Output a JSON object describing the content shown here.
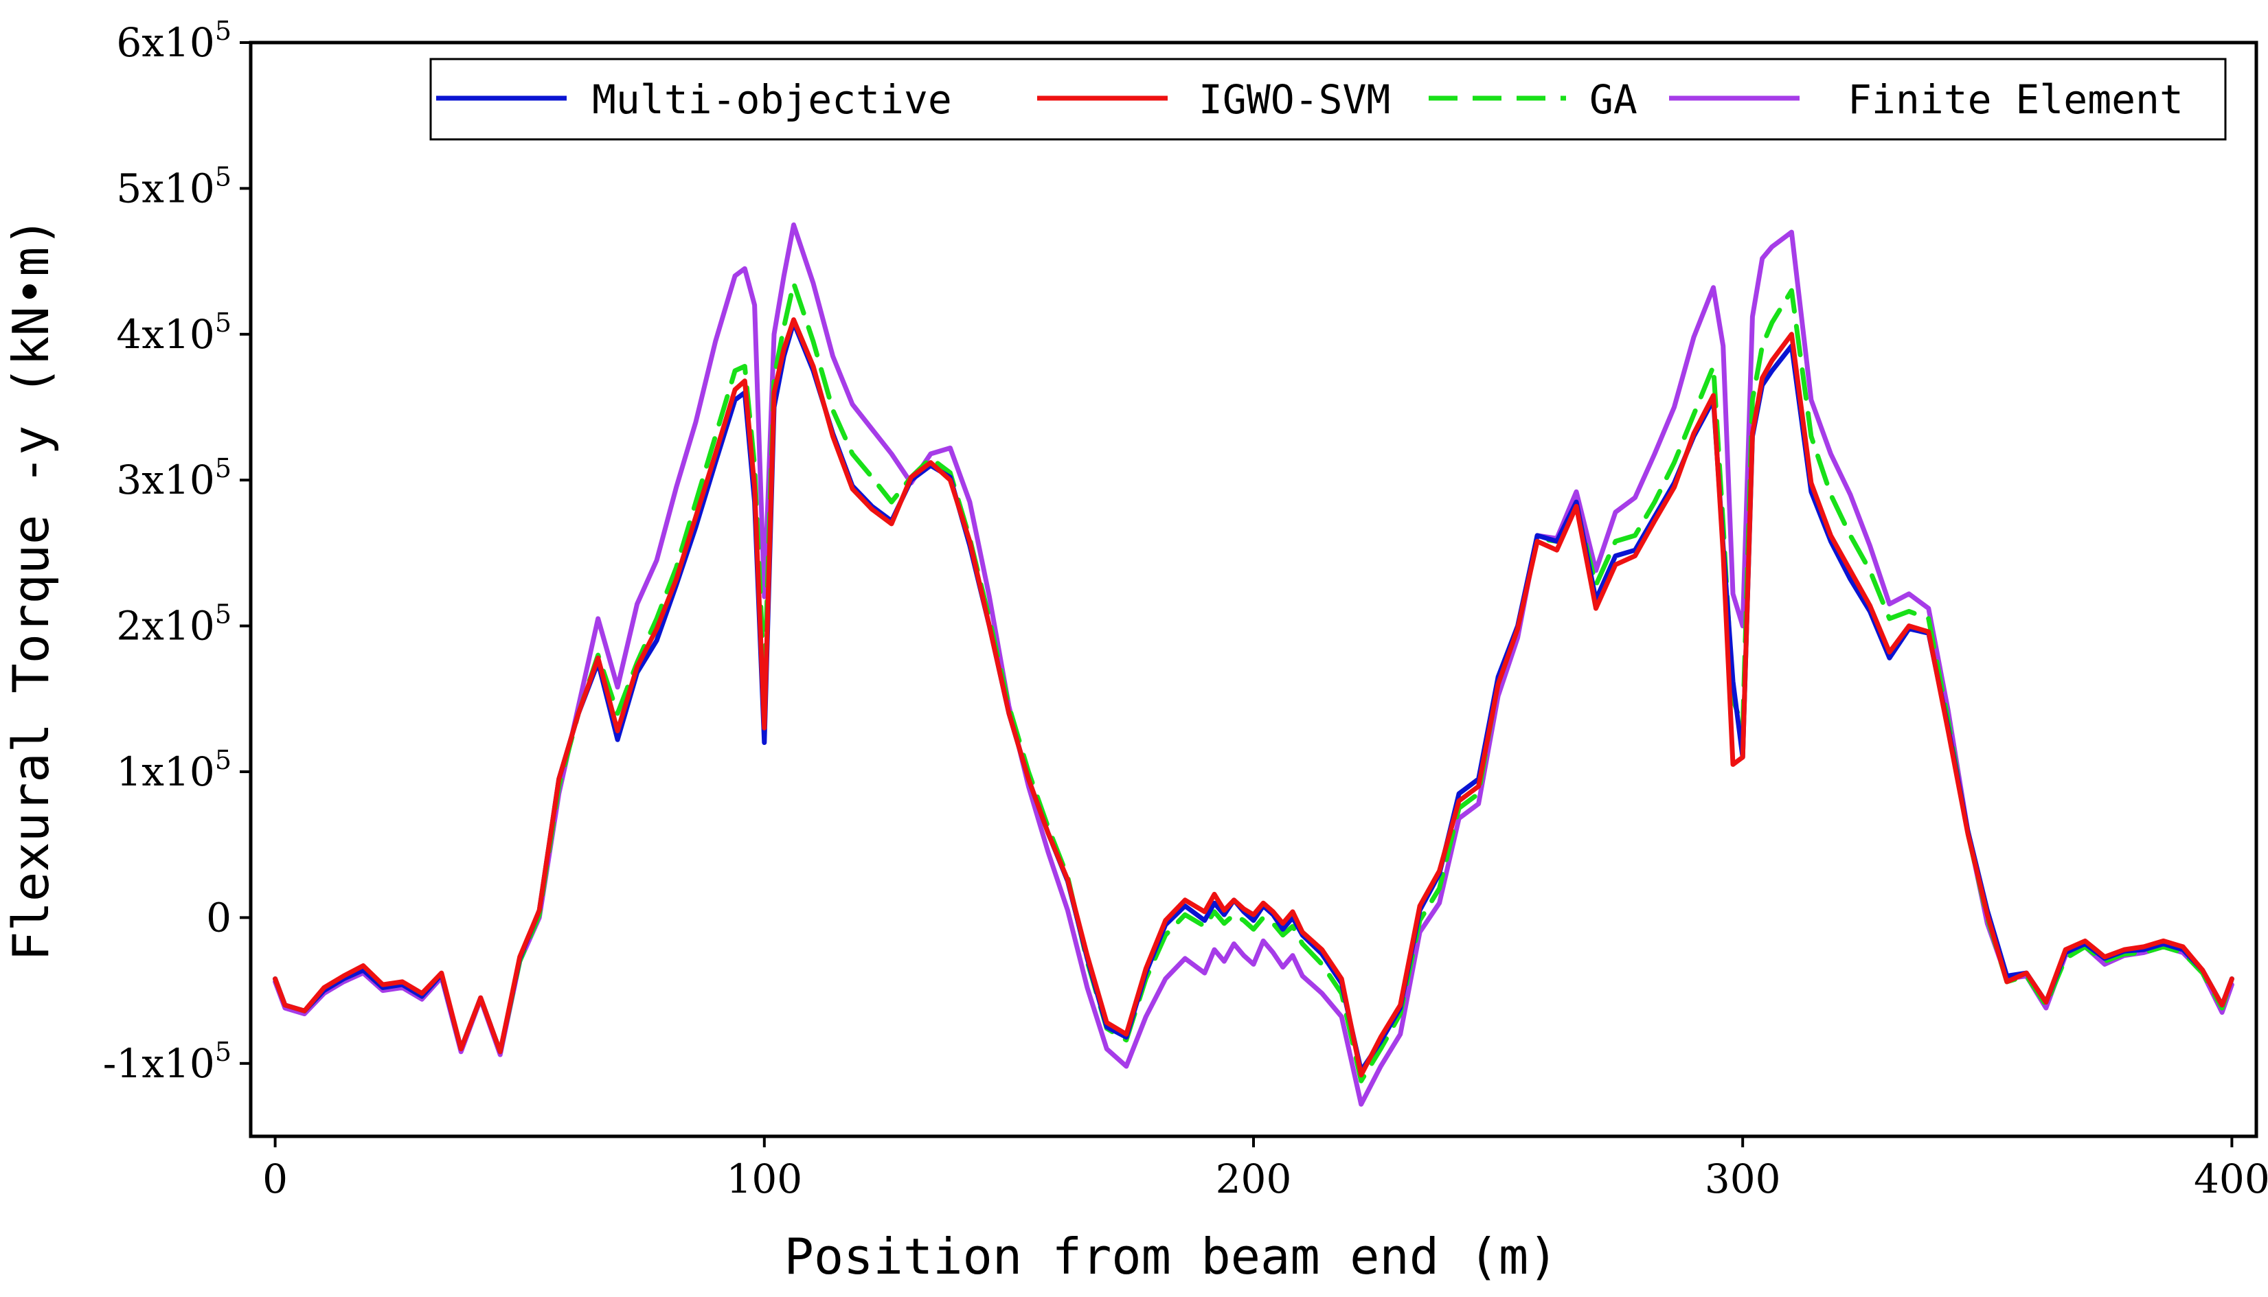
{
  "chart_data": {
    "type": "line",
    "xlabel": "Position from beam end (m)",
    "ylabel": "Flexural Torque -y (kN•m)",
    "xlim": [
      -5,
      405
    ],
    "ylim": [
      -150000,
      600000
    ],
    "x_ticks": [
      0,
      100,
      200,
      300,
      400
    ],
    "x_tick_labels": [
      "0",
      "100",
      "200",
      "300",
      "400"
    ],
    "y_ticks": [
      {
        "value": 600000,
        "base": "6x10",
        "exp": "5"
      },
      {
        "value": 500000,
        "base": "5x10",
        "exp": "5"
      },
      {
        "value": 400000,
        "base": "4x10",
        "exp": "5"
      },
      {
        "value": 300000,
        "base": "3x10",
        "exp": "5"
      },
      {
        "value": 200000,
        "base": "2x10",
        "exp": "5"
      },
      {
        "value": 100000,
        "base": "1x10",
        "exp": "5"
      },
      {
        "value": 0,
        "base": "0",
        "exp": ""
      },
      {
        "value": -100000,
        "base": "-1x10",
        "exp": "5"
      }
    ],
    "grid": false,
    "legend_position": "top-right",
    "x": [
      0,
      2,
      6,
      10,
      14,
      18,
      22,
      26,
      30,
      34,
      38,
      42,
      46,
      50,
      54,
      58,
      62,
      66,
      70,
      74,
      78,
      82,
      86,
      90,
      94,
      96,
      98,
      100,
      102,
      104,
      106,
      110,
      114,
      118,
      122,
      126,
      130,
      134,
      138,
      142,
      146,
      150,
      154,
      158,
      162,
      166,
      170,
      174,
      178,
      182,
      186,
      190,
      192,
      194,
      196,
      198,
      200,
      202,
      204,
      206,
      208,
      210,
      214,
      218,
      222,
      226,
      230,
      234,
      238,
      242,
      246,
      250,
      254,
      258,
      262,
      266,
      270,
      274,
      278,
      282,
      286,
      290,
      294,
      296,
      298,
      300,
      302,
      304,
      306,
      310,
      314,
      318,
      322,
      326,
      330,
      334,
      338,
      342,
      346,
      350,
      354,
      358,
      362,
      366,
      370,
      374,
      378,
      382,
      386,
      390,
      394,
      398,
      400
    ],
    "series": [
      {
        "name": "Multi-objective",
        "color": "#0a14d2",
        "dash": "solid",
        "values": [
          -42000,
          -60000,
          -64000,
          -50000,
          -42000,
          -36000,
          -48000,
          -46000,
          -54000,
          -39000,
          -90000,
          -55000,
          -92000,
          -28000,
          5000,
          95000,
          140000,
          175000,
          122000,
          168000,
          190000,
          228000,
          268000,
          312000,
          355000,
          360000,
          285000,
          120000,
          350000,
          385000,
          408000,
          375000,
          332000,
          296000,
          282000,
          272000,
          300000,
          310000,
          302000,
          255000,
          200000,
          140000,
          95000,
          58000,
          25000,
          -28000,
          -75000,
          -82000,
          -38000,
          -5000,
          8000,
          -2000,
          10000,
          2000,
          12000,
          4000,
          -2000,
          8000,
          2000,
          -8000,
          0,
          -12000,
          -25000,
          -45000,
          -105000,
          -85000,
          -62000,
          5000,
          30000,
          85000,
          95000,
          165000,
          200000,
          262000,
          258000,
          285000,
          218000,
          248000,
          252000,
          275000,
          298000,
          330000,
          355000,
          255000,
          162000,
          110000,
          330000,
          365000,
          375000,
          392000,
          292000,
          258000,
          232000,
          210000,
          178000,
          198000,
          195000,
          130000,
          60000,
          5000,
          -40000,
          -38000,
          -58000,
          -24000,
          -18000,
          -28000,
          -23000,
          -22000,
          -18000,
          -22000,
          -36000,
          -60000,
          -42000
        ]
      },
      {
        "name": "IGWO-SVM",
        "color": "#ee1111",
        "dash": "solid",
        "values": [
          -42000,
          -60000,
          -64000,
          -48000,
          -40000,
          -33000,
          -46000,
          -44000,
          -52000,
          -38000,
          -90000,
          -55000,
          -92000,
          -27000,
          5000,
          95000,
          140000,
          178000,
          128000,
          172000,
          198000,
          232000,
          275000,
          318000,
          362000,
          368000,
          295000,
          130000,
          360000,
          390000,
          410000,
          378000,
          330000,
          294000,
          280000,
          270000,
          302000,
          312000,
          300000,
          258000,
          200000,
          140000,
          95000,
          58000,
          26000,
          -26000,
          -72000,
          -80000,
          -35000,
          -2000,
          12000,
          4000,
          16000,
          5000,
          12000,
          6000,
          2000,
          10000,
          4000,
          -4000,
          4000,
          -10000,
          -22000,
          -42000,
          -108000,
          -82000,
          -60000,
          8000,
          32000,
          80000,
          90000,
          160000,
          198000,
          258000,
          252000,
          282000,
          212000,
          242000,
          248000,
          272000,
          295000,
          332000,
          358000,
          250000,
          105000,
          110000,
          332000,
          370000,
          382000,
          400000,
          298000,
          262000,
          238000,
          214000,
          182000,
          200000,
          196000,
          128000,
          58000,
          2000,
          -44000,
          -38000,
          -58000,
          -22000,
          -16000,
          -27000,
          -22000,
          -20000,
          -16000,
          -20000,
          -36000,
          -60000,
          -42000
        ]
      },
      {
        "name": "GA",
        "color": "#18e018",
        "dash": "dashed",
        "values": [
          -42000,
          -60000,
          -64000,
          -50000,
          -42000,
          -36000,
          -48000,
          -46000,
          -54000,
          -39000,
          -90000,
          -55000,
          -92000,
          -30000,
          2000,
          90000,
          140000,
          180000,
          140000,
          175000,
          205000,
          240000,
          285000,
          330000,
          375000,
          378000,
          310000,
          160000,
          370000,
          405000,
          435000,
          395000,
          348000,
          318000,
          302000,
          285000,
          302000,
          315000,
          305000,
          260000,
          205000,
          145000,
          100000,
          62000,
          28000,
          -30000,
          -76000,
          -84000,
          -42000,
          -12000,
          2000,
          -6000,
          4000,
          -4000,
          2000,
          -2000,
          -8000,
          0,
          -4000,
          -12000,
          -6000,
          -18000,
          -32000,
          -52000,
          -112000,
          -90000,
          -66000,
          -2000,
          20000,
          75000,
          85000,
          162000,
          198000,
          260000,
          258000,
          282000,
          228000,
          258000,
          262000,
          285000,
          312000,
          345000,
          378000,
          270000,
          150000,
          130000,
          355000,
          392000,
          408000,
          430000,
          330000,
          290000,
          262000,
          238000,
          205000,
          210000,
          205000,
          135000,
          58000,
          0,
          -44000,
          -40000,
          -60000,
          -28000,
          -20000,
          -30000,
          -25000,
          -24000,
          -20000,
          -24000,
          -38000,
          -62000,
          -42000
        ]
      },
      {
        "name": "Finite Element",
        "color": "#a63ce8",
        "dash": "solid",
        "values": [
          -44000,
          -62000,
          -66000,
          -52000,
          -44000,
          -38000,
          -50000,
          -48000,
          -56000,
          -41000,
          -92000,
          -56000,
          -94000,
          -30000,
          0,
          85000,
          145000,
          205000,
          158000,
          215000,
          245000,
          295000,
          340000,
          395000,
          440000,
          445000,
          420000,
          220000,
          400000,
          440000,
          475000,
          435000,
          385000,
          352000,
          335000,
          318000,
          298000,
          318000,
          322000,
          285000,
          220000,
          145000,
          90000,
          45000,
          5000,
          -48000,
          -90000,
          -102000,
          -68000,
          -42000,
          -28000,
          -38000,
          -22000,
          -30000,
          -18000,
          -26000,
          -32000,
          -16000,
          -24000,
          -34000,
          -26000,
          -40000,
          -52000,
          -68000,
          -128000,
          -102000,
          -80000,
          -10000,
          10000,
          68000,
          78000,
          152000,
          192000,
          262000,
          260000,
          292000,
          238000,
          278000,
          288000,
          318000,
          350000,
          398000,
          432000,
          392000,
          222000,
          200000,
          412000,
          452000,
          460000,
          470000,
          355000,
          318000,
          290000,
          255000,
          215000,
          222000,
          212000,
          142000,
          60000,
          -4000,
          -42000,
          -40000,
          -62000,
          -26000,
          -20000,
          -32000,
          -26000,
          -24000,
          -20000,
          -24000,
          -38000,
          -65000,
          -46000
        ]
      }
    ]
  }
}
